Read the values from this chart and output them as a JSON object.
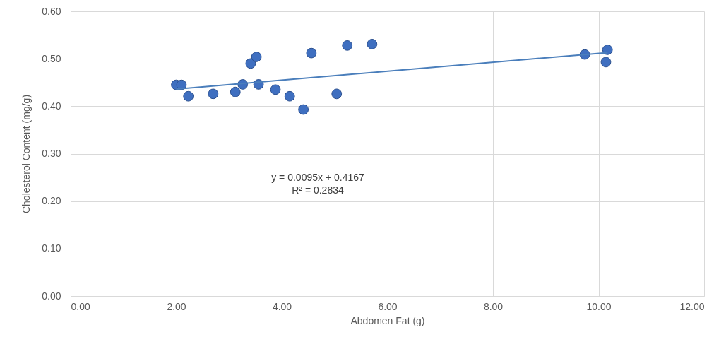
{
  "chart_data": {
    "type": "scatter",
    "xlabel": "Abdomen Fat (g)",
    "ylabel": "Cholesterol Content (mg/g)",
    "xlim": [
      0,
      12
    ],
    "xticks": [
      {
        "value": 0,
        "label": "0.00"
      },
      {
        "value": 2,
        "label": "2.00"
      },
      {
        "value": 4,
        "label": "4.00"
      },
      {
        "value": 6,
        "label": "6.00"
      },
      {
        "value": 8,
        "label": "8.00"
      },
      {
        "value": 10,
        "label": "10.00"
      },
      {
        "value": 12,
        "label": "12.00"
      }
    ],
    "ylim": [
      0,
      0.6
    ],
    "yticks": [
      {
        "value": 0,
        "label": "0.00"
      },
      {
        "value": 0.1,
        "label": "0.10"
      },
      {
        "value": 0.2,
        "label": "0.20"
      },
      {
        "value": 0.3,
        "label": "0.30"
      },
      {
        "value": 0.4,
        "label": "0.40"
      },
      {
        "value": 0.5,
        "label": "0.50"
      },
      {
        "value": 0.6,
        "label": "0.60"
      }
    ],
    "grid": true,
    "marker": "circle",
    "series": [
      {
        "color": "#3f6fc0",
        "x": [
          2.0,
          2.1,
          2.23,
          2.7,
          3.12,
          3.26,
          3.41,
          3.52,
          3.56,
          3.88,
          4.15,
          4.41,
          4.56,
          5.04,
          5.24,
          5.71,
          9.74,
          10.17,
          10.14
        ],
        "values": [
          0.445,
          0.445,
          0.421,
          0.426,
          0.43,
          0.446,
          0.49,
          0.504,
          0.446,
          0.435,
          0.421,
          0.393,
          0.512,
          0.426,
          0.528,
          0.531,
          0.509,
          0.519,
          0.493
        ]
      },
      {
        "type": "line",
        "marker": "none",
        "color": "#4a7ebb",
        "x": [
          2.0,
          10.17
        ],
        "values": [
          0.436,
          0.513
        ]
      }
    ],
    "annotations": [
      "y = 0.0095x + 0.4167",
      "R² = 0.2834"
    ]
  }
}
